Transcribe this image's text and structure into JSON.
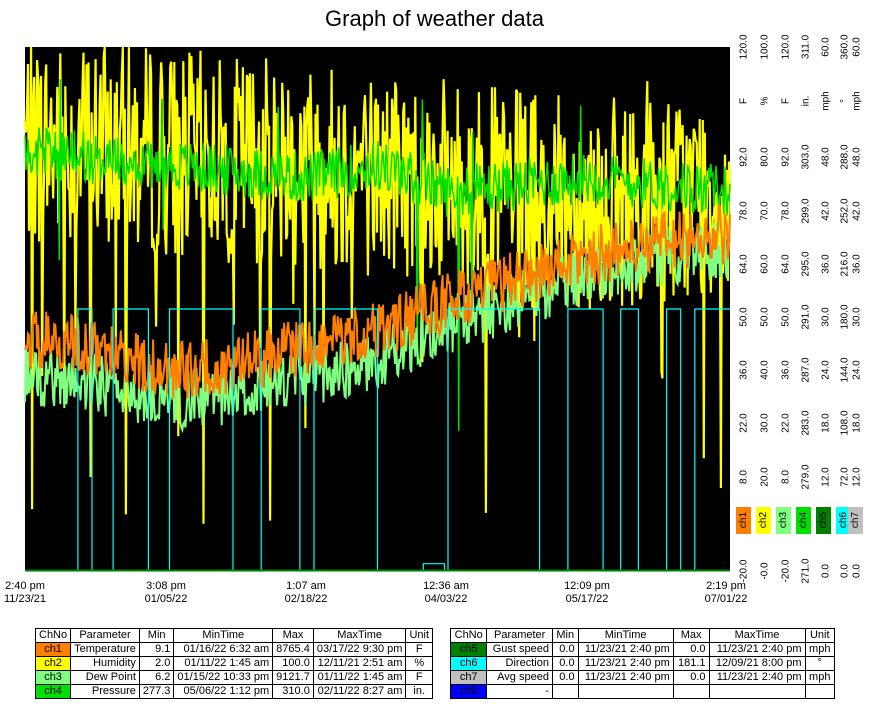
{
  "page": {
    "title": "Graph of weather data"
  },
  "chart_data": {
    "type": "line",
    "title": "Graph of weather data",
    "background": "#000000",
    "grid": false,
    "x_ticks": [
      {
        "time": "2:40 pm",
        "date": "11/23/21"
      },
      {
        "time": "3:08 pm",
        "date": "01/05/22"
      },
      {
        "time": "1:07 am",
        "date": "02/18/22"
      },
      {
        "time": "12:36 am",
        "date": "04/03/22"
      },
      {
        "time": "12:09 pm",
        "date": "05/17/22"
      },
      {
        "time": "2:19 pm",
        "date": "07/01/22"
      }
    ],
    "y_axes": [
      {
        "channel": "ch1",
        "ticks": [
          "120.0",
          "92.0",
          "78.0",
          "64.0",
          "50.0",
          "36.0",
          "22.0",
          "8.0",
          "-20.0"
        ],
        "unit": "F",
        "range": [
          -20,
          120
        ]
      },
      {
        "channel": "ch2",
        "ticks": [
          "100.0",
          "80.0",
          "70.0",
          "60.0",
          "50.0",
          "40.0",
          "30.0",
          "20.0",
          "-0.0"
        ],
        "unit": "%",
        "range": [
          0,
          100
        ]
      },
      {
        "channel": "ch3",
        "ticks": [
          "120.0",
          "92.0",
          "78.0",
          "64.0",
          "50.0",
          "36.0",
          "22.0",
          "8.0",
          "-20.0"
        ],
        "unit": "F",
        "range": [
          -20,
          120
        ]
      },
      {
        "channel": "ch4",
        "ticks": [
          "311.0",
          "303.0",
          "299.0",
          "295.0",
          "291.0",
          "287.0",
          "283.0",
          "279.0",
          "271.0"
        ],
        "unit": "in.",
        "range": [
          271,
          311
        ]
      },
      {
        "channel": "ch5",
        "ticks": [
          "60.0",
          "48.0",
          "42.0",
          "36.0",
          "30.0",
          "24.0",
          "18.0",
          "12.0",
          "0.0"
        ],
        "unit": "mph",
        "range": [
          0,
          60
        ]
      },
      {
        "channel": "ch6",
        "ticks": [
          "360.0",
          "288.0",
          "252.0",
          "216.0",
          "180.0",
          "144.0",
          "108.0",
          "72.0",
          "0.0"
        ],
        "unit": "°",
        "range": [
          0,
          360
        ]
      },
      {
        "channel": "ch7",
        "ticks": [
          "60.0",
          "48.0",
          "42.0",
          "36.0",
          "30.0",
          "24.0",
          "18.0",
          "12.0",
          "0.0"
        ],
        "unit": "mph",
        "range": [
          0,
          60
        ]
      }
    ],
    "legend_placement": "right",
    "series": [
      {
        "name": "ch1",
        "label": "Temperature",
        "color": "#ff8000",
        "min": 9.1,
        "max": 8765.4,
        "approx_trend": [
          [
            0,
            42
          ],
          [
            0.1,
            40
          ],
          [
            0.2,
            33
          ],
          [
            0.3,
            35
          ],
          [
            0.4,
            40
          ],
          [
            0.5,
            44
          ],
          [
            0.6,
            52
          ],
          [
            0.7,
            58
          ],
          [
            0.8,
            64
          ],
          [
            0.9,
            68
          ],
          [
            1,
            70
          ]
        ]
      },
      {
        "name": "ch2",
        "label": "Humidity",
        "color": "#ffff00",
        "min": 2.0,
        "max": 100.0,
        "approx_trend": [
          [
            0,
            82
          ],
          [
            0.2,
            80
          ],
          [
            0.4,
            78
          ],
          [
            0.6,
            74
          ],
          [
            0.8,
            70
          ],
          [
            1,
            72
          ]
        ]
      },
      {
        "name": "ch3",
        "label": "Dew Point",
        "color": "#80ff80",
        "min": 6.2,
        "max": 9121.7,
        "approx_trend": [
          [
            0,
            32
          ],
          [
            0.1,
            30
          ],
          [
            0.2,
            25
          ],
          [
            0.3,
            27
          ],
          [
            0.4,
            32
          ],
          [
            0.5,
            36
          ],
          [
            0.6,
            46
          ],
          [
            0.7,
            52
          ],
          [
            0.8,
            60
          ],
          [
            0.9,
            64
          ],
          [
            1,
            66
          ]
        ]
      },
      {
        "name": "ch4",
        "label": "Pressure",
        "color": "#00e000",
        "min": 277.3,
        "max": 310.0,
        "approx_trend": [
          [
            0,
            303
          ],
          [
            0.2,
            302
          ],
          [
            0.4,
            301
          ],
          [
            0.5,
            302
          ],
          [
            0.6,
            300
          ],
          [
            0.8,
            301
          ],
          [
            1,
            300
          ]
        ]
      },
      {
        "name": "ch5",
        "label": "Gust speed",
        "color": "#008000",
        "min": 0.0,
        "max": 0.0
      },
      {
        "name": "ch6",
        "label": "Direction",
        "color": "#00ffff",
        "min": 0.0,
        "max": 181.1
      },
      {
        "name": "ch7",
        "label": "Avg speed",
        "color": "#c0c0c0",
        "min": 0.0,
        "max": 0.0
      }
    ],
    "direction_steps": [
      [
        0,
        0
      ],
      [
        0.075,
        0
      ],
      [
        0.075,
        180
      ],
      [
        0.095,
        180
      ],
      [
        0.095,
        0
      ],
      [
        0.125,
        0
      ],
      [
        0.125,
        180
      ],
      [
        0.175,
        180
      ],
      [
        0.175,
        0
      ],
      [
        0.205,
        0
      ],
      [
        0.205,
        180
      ],
      [
        0.295,
        180
      ],
      [
        0.295,
        0
      ],
      [
        0.335,
        0
      ],
      [
        0.335,
        180
      ],
      [
        0.39,
        180
      ],
      [
        0.39,
        0
      ],
      [
        0.41,
        0
      ],
      [
        0.41,
        180
      ],
      [
        0.5,
        180
      ],
      [
        0.5,
        0
      ],
      [
        0.565,
        0
      ],
      [
        0.565,
        5
      ],
      [
        0.595,
        5
      ],
      [
        0.595,
        0
      ],
      [
        0.6,
        0
      ],
      [
        0.6,
        180
      ],
      [
        0.73,
        180
      ],
      [
        0.73,
        0
      ],
      [
        0.77,
        0
      ],
      [
        0.77,
        180
      ],
      [
        0.82,
        180
      ],
      [
        0.82,
        0
      ],
      [
        0.845,
        0
      ],
      [
        0.845,
        180
      ],
      [
        0.87,
        180
      ],
      [
        0.87,
        0
      ],
      [
        0.91,
        0
      ],
      [
        0.91,
        180
      ],
      [
        0.93,
        180
      ],
      [
        0.93,
        0
      ],
      [
        0.95,
        0
      ],
      [
        0.95,
        180
      ],
      [
        1,
        180
      ]
    ]
  },
  "table_left": {
    "headers": [
      "ChNo",
      "Parameter",
      "Min",
      "MinTime",
      "Max",
      "MaxTime",
      "Unit"
    ],
    "rows": [
      {
        "ch": "ch1",
        "color": "#ff8000",
        "param": "Temperature",
        "min": "9.1",
        "mintime": "01/16/22 6:32 am",
        "max": "8765.4",
        "maxtime": "03/17/22 9:30 pm",
        "unit": "F"
      },
      {
        "ch": "ch2",
        "color": "#ffff00",
        "param": "Humidity",
        "min": "2.0",
        "mintime": "01/11/22 1:45 am",
        "max": "100.0",
        "maxtime": "12/11/21 2:51 am",
        "unit": "%"
      },
      {
        "ch": "ch3",
        "color": "#80ff80",
        "param": "Dew Point",
        "min": "6.2",
        "mintime": "01/15/22 10:33 pm",
        "max": "9121.7",
        "maxtime": "01/11/22 1:45 am",
        "unit": "F"
      },
      {
        "ch": "ch4",
        "color": "#00e000",
        "param": "Pressure",
        "min": "277.3",
        "mintime": "05/06/22 1:12 pm",
        "max": "310.0",
        "maxtime": "02/11/22 8:27 am",
        "unit": "in."
      }
    ]
  },
  "table_right": {
    "headers": [
      "ChNo",
      "Parameter",
      "Min",
      "MinTime",
      "Max",
      "MaxTime",
      "Unit"
    ],
    "rows": [
      {
        "ch": "ch5",
        "color": "#008000",
        "param": "Gust speed",
        "min": "0.0",
        "mintime": "11/23/21 2:40 pm",
        "max": "0.0",
        "maxtime": "11/23/21 2:40 pm",
        "unit": "mph"
      },
      {
        "ch": "ch6",
        "color": "#00ffff",
        "param": "Direction",
        "min": "0.0",
        "mintime": "11/23/21 2:40 pm",
        "max": "181.1",
        "maxtime": "12/09/21 8:00 pm",
        "unit": "°"
      },
      {
        "ch": "ch7",
        "color": "#c0c0c0",
        "param": "Avg speed",
        "min": "0.0",
        "mintime": "11/23/21 2:40 pm",
        "max": "0.0",
        "maxtime": "11/23/21 2:40 pm",
        "unit": "mph"
      },
      {
        "ch": "ch8",
        "color": "#0000ff",
        "param": "-",
        "min": "",
        "mintime": "",
        "max": "",
        "maxtime": "",
        "unit": ""
      }
    ]
  }
}
